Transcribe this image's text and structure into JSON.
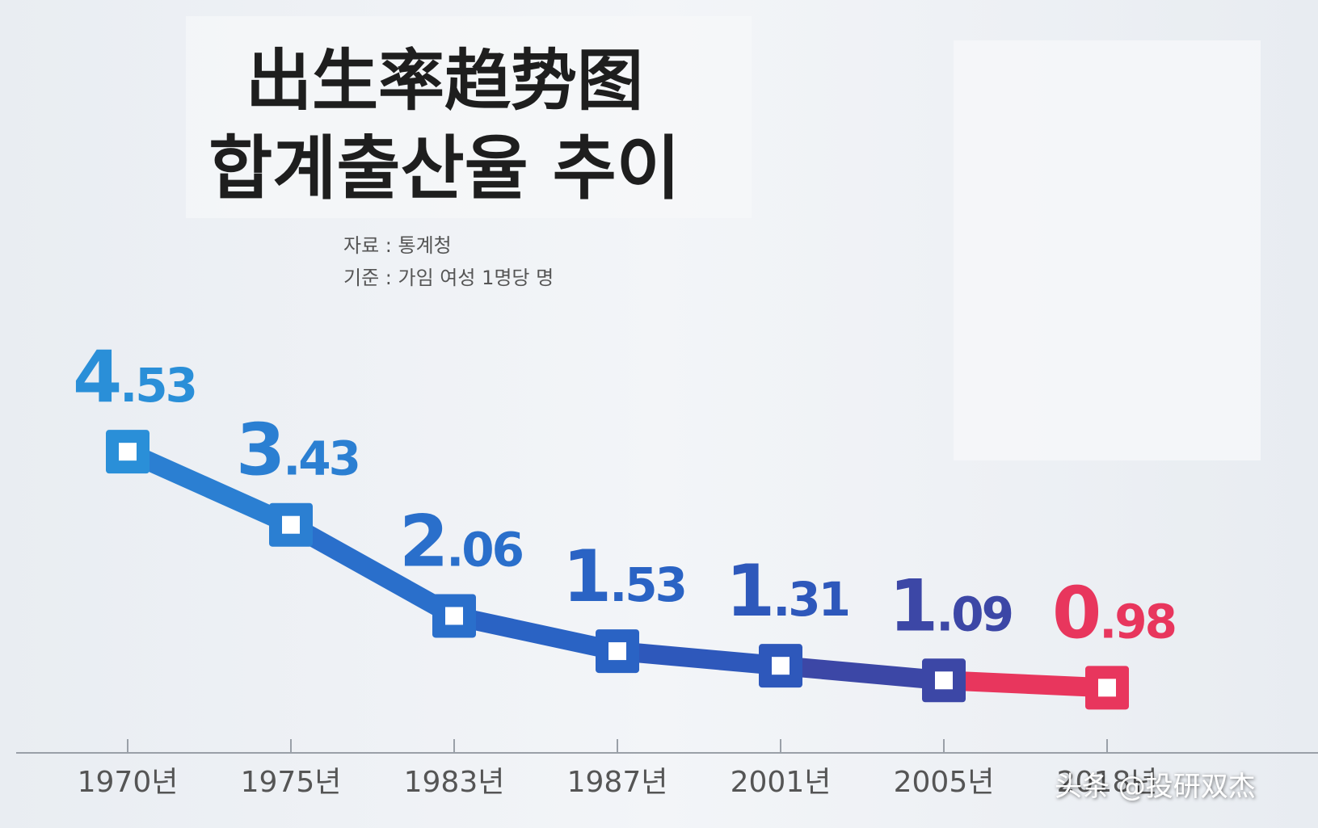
{
  "chart_data": {
    "type": "line",
    "title": "出生率趋势图",
    "subtitle": "합계출산율 추이",
    "source": "자료 : 통계청",
    "basis": "기준 : 가임 여성 1명당 명",
    "watermark": "头条 @投研双杰",
    "categories": [
      "1970년",
      "1975년",
      "1983년",
      "1987년",
      "2001년",
      "2005년",
      "2018년"
    ],
    "values": [
      4.53,
      3.43,
      2.06,
      1.53,
      1.31,
      1.09,
      0.98
    ],
    "point_colors": [
      "#2a8fd8",
      "#2b7fd2",
      "#2a6fcb",
      "#2a63c4",
      "#2e58bb",
      "#3c47a6",
      "#e8365d"
    ]
  }
}
